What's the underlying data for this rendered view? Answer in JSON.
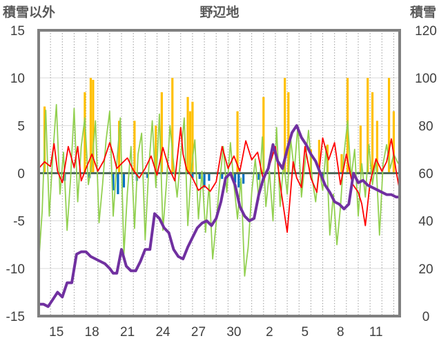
{
  "chart_data": {
    "type": "line",
    "title": "野辺地",
    "ylabel_left": "積雪以外",
    "ylabel_right": "積雪",
    "ylim_left": [
      -15,
      15
    ],
    "yticks_left": [
      "15",
      "10",
      "5",
      "0",
      "-5",
      "-10",
      "-15"
    ],
    "ylim_right": [
      0,
      120
    ],
    "yticks_right": [
      "120",
      "100",
      "80",
      "60",
      "40",
      "20",
      "0"
    ],
    "x_range_days": [
      0,
      30.5
    ],
    "xticks": [
      {
        "label": "15",
        "x": 1.5
      },
      {
        "label": "18",
        "x": 4.5
      },
      {
        "label": "21",
        "x": 7.5
      },
      {
        "label": "24",
        "x": 10.5
      },
      {
        "label": "27",
        "x": 13.5
      },
      {
        "label": "30",
        "x": 16.5
      },
      {
        "label": "2",
        "x": 19.5
      },
      {
        "label": "5",
        "x": 22.5
      },
      {
        "label": "8",
        "x": 25.5
      },
      {
        "label": "11",
        "x": 28.5
      }
    ],
    "grid": "vertical dotted lines at each day, horizontal gridlines every 5 units",
    "colors": {
      "temperature": "#ff0000",
      "other": "#92d050",
      "snowfall_bars": "#ffc000",
      "negative_bars": "#0070c0",
      "snow_depth": "#7030a0",
      "frame": "#808080",
      "zero_line": "#4d6a5c"
    },
    "series": [
      {
        "axis": "left",
        "kind": "line",
        "color": "#ff0000",
        "x": [
          0,
          0.5,
          1,
          1.3,
          1.6,
          2.0,
          2.5,
          3.0,
          3.3,
          3.6,
          4.0,
          4.5,
          5.0,
          5.5,
          6.0,
          6.3,
          6.6,
          7.0,
          7.5,
          8.0,
          8.5,
          9.0,
          9.5,
          10.0,
          10.5,
          11.0,
          11.5,
          12.0,
          12.2,
          12.5,
          13.0,
          13.5,
          14.0,
          14.5,
          15.0,
          15.5,
          16.0,
          16.5,
          17.0,
          17.5,
          18.0,
          18.5,
          19.0,
          19.5,
          20.0,
          20.5,
          21.0,
          21.5,
          21.8,
          22.2,
          22.5,
          23.0,
          23.5,
          24.0,
          24.5,
          25.0,
          25.5,
          26.0,
          26.5,
          27.0,
          27.3,
          27.6,
          28.0,
          28.5,
          29.0,
          29.4,
          29.8,
          30.2,
          30.5
        ],
        "y": [
          0.5,
          1.2,
          0.7,
          3.1,
          0.2,
          -1.0,
          2.8,
          0.6,
          2.8,
          -0.8,
          0.5,
          2.0,
          0.2,
          1.3,
          3.2,
          2.0,
          0.5,
          1.0,
          1.6,
          0.3,
          -0.5,
          0.5,
          1.8,
          -0.2,
          2.7,
          0.6,
          -0.8,
          4.8,
          2.0,
          0.4,
          -0.5,
          -1.8,
          -1.3,
          -1.9,
          -0.9,
          2.8,
          0.5,
          1.8,
          0.2,
          3.4,
          1.4,
          2.2,
          -0.8,
          0.8,
          2.8,
          -2.0,
          -6.2,
          1.2,
          -0.5,
          -1.5,
          2.8,
          -0.5,
          -2.0,
          3.7,
          1.4,
          3.2,
          -1.2,
          2.0,
          -1.1,
          -2.0,
          -3.2,
          -5.5,
          -1.0,
          1.5,
          0.2,
          1.2,
          3.6,
          0.2,
          -1.8
        ]
      },
      {
        "axis": "left",
        "kind": "line",
        "color": "#92d050",
        "x": [
          0,
          0.3,
          0.6,
          0.9,
          1.2,
          1.5,
          1.8,
          2.1,
          2.4,
          2.7,
          3.0,
          3.3,
          3.6,
          3.9,
          4.2,
          4.5,
          4.8,
          5.1,
          5.4,
          5.7,
          6.0,
          6.3,
          6.6,
          6.9,
          7.2,
          7.5,
          7.8,
          8.1,
          8.4,
          8.7,
          9.0,
          9.3,
          9.6,
          9.9,
          10.2,
          10.5,
          10.8,
          11.1,
          11.4,
          11.7,
          12.0,
          12.3,
          12.6,
          12.9,
          13.2,
          13.5,
          13.8,
          14.1,
          14.4,
          14.7,
          15.0,
          15.3,
          15.6,
          15.9,
          16.2,
          16.5,
          16.8,
          17.1,
          17.4,
          17.7,
          18.0,
          18.3,
          18.6,
          18.9,
          19.2,
          19.5,
          19.8,
          20.1,
          20.4,
          20.7,
          21.0,
          21.3,
          21.6,
          21.9,
          22.2,
          22.5,
          22.8,
          23.1,
          23.4,
          23.7,
          24.0,
          24.3,
          24.6,
          24.9,
          25.2,
          25.5,
          25.8,
          26.1,
          26.4,
          26.7,
          27.0,
          27.3,
          27.6,
          27.9,
          28.2,
          28.5,
          28.8,
          29.1,
          29.4,
          29.7,
          30.0,
          30.3,
          30.5
        ],
        "y": [
          -9.5,
          -4.0,
          6.6,
          -4.5,
          2.0,
          7.2,
          -2.2,
          2.2,
          -6.0,
          -0.5,
          6.8,
          -3.0,
          2.8,
          5.8,
          -1.2,
          1.0,
          5.5,
          -5.2,
          -1.2,
          3.5,
          6.5,
          -4.5,
          1.0,
          5.8,
          -8.5,
          -2.0,
          2.8,
          -5.8,
          2.0,
          4.2,
          -7.0,
          0.5,
          5.5,
          -1.5,
          6.2,
          -6.0,
          -1.0,
          5.0,
          1.0,
          -2.5,
          1.8,
          5.8,
          -5.5,
          0.5,
          3.5,
          -4.8,
          0.2,
          -6.2,
          -1.2,
          -9.0,
          -5.2,
          -0.8,
          2.8,
          -2.0,
          3.2,
          -1.2,
          -4.8,
          -0.5,
          -10.8,
          -7.8,
          -2.0,
          1.5,
          -2.8,
          3.8,
          -3.5,
          0.2,
          -5.0,
          4.8,
          -3.5,
          1.2,
          -2.2,
          3.5,
          0.2,
          5.0,
          -2.5,
          1.0,
          4.5,
          -0.5,
          -3.0,
          0.5,
          -1.8,
          2.8,
          -6.5,
          -2.2,
          -7.5,
          -3.5,
          2.0,
          5.5,
          -0.5,
          2.5,
          -4.5,
          1.0,
          -2.5,
          3.0,
          -1.2,
          1.5,
          -6.5,
          1.0,
          3.0,
          0.5,
          2.0,
          1.2,
          0.8
        ]
      },
      {
        "axis": "left",
        "kind": "bar",
        "color": "#ffc000",
        "name": "",
        "x": [
          0.5,
          3.9,
          4.4,
          4.6,
          6.8,
          8.1,
          9.9,
          10.4,
          11.3,
          12.6,
          12.8,
          13.0,
          16.8,
          19.0,
          20.8,
          21.1,
          23.0,
          23.7,
          24.4,
          25.6,
          26.1,
          27.2,
          27.8,
          28.2,
          28.6,
          29.6,
          30.0
        ],
        "y": [
          7.0,
          8.5,
          10.0,
          9.8,
          5.5,
          5.5,
          5.0,
          8.5,
          10.0,
          8.0,
          6.5,
          7.5,
          6.5,
          8.0,
          10.0,
          8.5,
          2.5,
          3.5,
          3.0,
          2.0,
          10.0,
          5.0,
          10.0,
          8.5,
          5.5,
          10.0,
          6.5
        ]
      },
      {
        "axis": "left",
        "kind": "bar",
        "color": "#0070c0",
        "name": "",
        "x": [
          2.2,
          4.3,
          6.3,
          6.7,
          7.2,
          8.3,
          9.2,
          13.0,
          13.6,
          14.0,
          14.4,
          15.5,
          16.6,
          16.9,
          17.3,
          18.6,
          24.0
        ],
        "y": [
          -0.8,
          -0.5,
          -1.8,
          -2.2,
          -1.5,
          -0.8,
          -0.5,
          -0.5,
          -0.6,
          -1.5,
          -0.8,
          -0.6,
          -1.0,
          -1.5,
          -1.1,
          -0.7,
          -0.6
        ]
      },
      {
        "axis": "right",
        "kind": "line",
        "color": "#7030a0",
        "x": [
          0,
          0.4,
          0.8,
          1.2,
          1.6,
          2.0,
          2.4,
          2.8,
          3.2,
          3.6,
          4.0,
          4.4,
          4.8,
          5.2,
          5.6,
          6.0,
          6.3,
          6.6,
          7.0,
          7.4,
          7.8,
          8.2,
          8.6,
          9.0,
          9.4,
          9.8,
          10.2,
          10.6,
          11.0,
          11.4,
          11.8,
          12.2,
          12.6,
          13.0,
          13.4,
          13.8,
          14.2,
          14.6,
          15.0,
          15.4,
          15.8,
          16.2,
          16.6,
          17.0,
          17.4,
          17.8,
          18.2,
          18.6,
          19.0,
          19.4,
          19.8,
          20.2,
          20.6,
          21.0,
          21.4,
          21.8,
          22.2,
          22.6,
          23.0,
          23.4,
          23.8,
          24.2,
          24.6,
          25.0,
          25.4,
          25.8,
          26.2,
          26.6,
          27.0,
          27.4,
          27.8,
          28.2,
          28.6,
          29.0,
          29.4,
          29.8,
          30.2,
          30.5
        ],
        "y": [
          5,
          5,
          4,
          7,
          10,
          8,
          14,
          14,
          26,
          27,
          27,
          25,
          24,
          23,
          22,
          20,
          18,
          18,
          28,
          21,
          19,
          19,
          23,
          28,
          28,
          43,
          41,
          37,
          35,
          28,
          25,
          24,
          29,
          33,
          37,
          39,
          40,
          38,
          41,
          48,
          58,
          60,
          55,
          46,
          42,
          40,
          41,
          51,
          58,
          62,
          72,
          65,
          62,
          70,
          77,
          80,
          75,
          72,
          68,
          65,
          60,
          55,
          52,
          48,
          47,
          45,
          47,
          60,
          56,
          57,
          55,
          54,
          53,
          52,
          51,
          51,
          50,
          50
        ]
      }
    ]
  }
}
